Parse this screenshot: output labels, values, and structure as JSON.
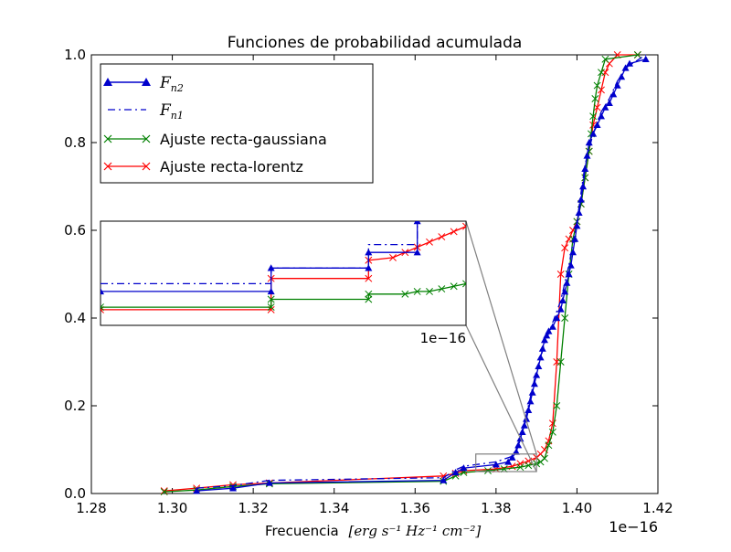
{
  "chart_data": {
    "type": "line",
    "title": "Funciones de probabilidad acumulada",
    "xlabel_text": "Frecuencia",
    "xlabel_math": "[erg s⁻¹ Hz⁻¹ cm⁻²]",
    "x_offset_label": "1e−16",
    "xlim": [
      1.28,
      1.42
    ],
    "ylim": [
      0.0,
      1.0
    ],
    "xticks": [
      "1.28",
      "1.30",
      "1.32",
      "1.34",
      "1.36",
      "1.38",
      "1.40",
      "1.42"
    ],
    "yticks": [
      "0.0",
      "0.2",
      "0.4",
      "0.6",
      "0.8",
      "1.0"
    ],
    "legend_position": "top-left",
    "series": [
      {
        "name": "F_n2",
        "label_main": "F",
        "label_sub": "n2",
        "color": "#0000cc",
        "style": "solid",
        "marker": "triangle",
        "points": [
          [
            1.306,
            0.006
          ],
          [
            1.315,
            0.012
          ],
          [
            1.324,
            0.024
          ],
          [
            1.367,
            0.03
          ],
          [
            1.37,
            0.048
          ],
          [
            1.372,
            0.058
          ],
          [
            1.38,
            0.066
          ],
          [
            1.383,
            0.072
          ],
          [
            1.384,
            0.082
          ],
          [
            1.385,
            0.095
          ],
          [
            1.3855,
            0.11
          ],
          [
            1.386,
            0.125
          ],
          [
            1.3865,
            0.14
          ],
          [
            1.387,
            0.155
          ],
          [
            1.3875,
            0.17
          ],
          [
            1.388,
            0.19
          ],
          [
            1.3885,
            0.21
          ],
          [
            1.389,
            0.23
          ],
          [
            1.3895,
            0.25
          ],
          [
            1.39,
            0.27
          ],
          [
            1.3905,
            0.29
          ],
          [
            1.391,
            0.31
          ],
          [
            1.3915,
            0.33
          ],
          [
            1.392,
            0.35
          ],
          [
            1.3925,
            0.36
          ],
          [
            1.393,
            0.37
          ],
          [
            1.394,
            0.38
          ],
          [
            1.395,
            0.4
          ],
          [
            1.396,
            0.42
          ],
          [
            1.3965,
            0.44
          ],
          [
            1.397,
            0.46
          ],
          [
            1.3975,
            0.48
          ],
          [
            1.398,
            0.5
          ],
          [
            1.3985,
            0.52
          ],
          [
            1.399,
            0.55
          ],
          [
            1.3995,
            0.58
          ],
          [
            1.4,
            0.61
          ],
          [
            1.4005,
            0.64
          ],
          [
            1.401,
            0.67
          ],
          [
            1.4015,
            0.7
          ],
          [
            1.402,
            0.74
          ],
          [
            1.4025,
            0.77
          ],
          [
            1.403,
            0.8
          ],
          [
            1.404,
            0.82
          ],
          [
            1.405,
            0.84
          ],
          [
            1.406,
            0.86
          ],
          [
            1.407,
            0.88
          ],
          [
            1.408,
            0.89
          ],
          [
            1.409,
            0.91
          ],
          [
            1.41,
            0.93
          ],
          [
            1.411,
            0.95
          ],
          [
            1.412,
            0.97
          ],
          [
            1.413,
            0.98
          ],
          [
            1.417,
            0.99
          ]
        ]
      },
      {
        "name": "F_n1",
        "label_main": "F",
        "label_sub": "n1",
        "color": "#0000cc",
        "style": "dashdot",
        "marker": "none",
        "points": [
          [
            1.306,
            0.012
          ],
          [
            1.315,
            0.018
          ],
          [
            1.324,
            0.03
          ],
          [
            1.367,
            0.036
          ],
          [
            1.37,
            0.054
          ],
          [
            1.372,
            0.062
          ],
          [
            1.38,
            0.072
          ],
          [
            1.384,
            0.085
          ],
          [
            1.386,
            0.12
          ],
          [
            1.388,
            0.2
          ],
          [
            1.39,
            0.28
          ],
          [
            1.392,
            0.34
          ],
          [
            1.394,
            0.39
          ],
          [
            1.396,
            0.44
          ],
          [
            1.398,
            0.52
          ],
          [
            1.4,
            0.62
          ],
          [
            1.402,
            0.75
          ],
          [
            1.404,
            0.82
          ],
          [
            1.406,
            0.87
          ],
          [
            1.408,
            0.9
          ],
          [
            1.41,
            0.94
          ],
          [
            1.412,
            0.97
          ],
          [
            1.417,
            1.0
          ]
        ]
      },
      {
        "name": "Ajuste recta-gaussiana",
        "label_main": "Ajuste recta-gaussiana",
        "label_sub": "",
        "color": "#008000",
        "style": "solid",
        "marker": "x",
        "points": [
          [
            1.298,
            0.004
          ],
          [
            1.306,
            0.008
          ],
          [
            1.315,
            0.016
          ],
          [
            1.324,
            0.022
          ],
          [
            1.367,
            0.028
          ],
          [
            1.37,
            0.04
          ],
          [
            1.372,
            0.048
          ],
          [
            1.378,
            0.052
          ],
          [
            1.382,
            0.056
          ],
          [
            1.386,
            0.06
          ],
          [
            1.388,
            0.064
          ],
          [
            1.39,
            0.068
          ],
          [
            1.391,
            0.072
          ],
          [
            1.392,
            0.08
          ],
          [
            1.393,
            0.11
          ],
          [
            1.394,
            0.14
          ],
          [
            1.395,
            0.2
          ],
          [
            1.396,
            0.3
          ],
          [
            1.397,
            0.4
          ],
          [
            1.398,
            0.5
          ],
          [
            1.399,
            0.58
          ],
          [
            1.4,
            0.62
          ],
          [
            1.401,
            0.66
          ],
          [
            1.402,
            0.72
          ],
          [
            1.403,
            0.78
          ],
          [
            1.4035,
            0.82
          ],
          [
            1.404,
            0.86
          ],
          [
            1.4045,
            0.9
          ],
          [
            1.405,
            0.93
          ],
          [
            1.406,
            0.96
          ],
          [
            1.407,
            0.99
          ],
          [
            1.415,
            1.0
          ]
        ]
      },
      {
        "name": "Ajuste recta-lorentz",
        "label_main": "Ajuste recta-lorentz",
        "label_sub": "",
        "color": "#ff0000",
        "style": "solid",
        "marker": "x",
        "points": [
          [
            1.298,
            0.006
          ],
          [
            1.306,
            0.012
          ],
          [
            1.315,
            0.02
          ],
          [
            1.324,
            0.024
          ],
          [
            1.367,
            0.04
          ],
          [
            1.37,
            0.046
          ],
          [
            1.372,
            0.052
          ],
          [
            1.38,
            0.056
          ],
          [
            1.384,
            0.062
          ],
          [
            1.386,
            0.068
          ],
          [
            1.388,
            0.074
          ],
          [
            1.39,
            0.082
          ],
          [
            1.391,
            0.09
          ],
          [
            1.392,
            0.1
          ],
          [
            1.393,
            0.12
          ],
          [
            1.394,
            0.16
          ],
          [
            1.395,
            0.3
          ],
          [
            1.396,
            0.5
          ],
          [
            1.397,
            0.56
          ],
          [
            1.398,
            0.58
          ],
          [
            1.399,
            0.6
          ],
          [
            1.4,
            0.62
          ],
          [
            1.401,
            0.66
          ],
          [
            1.402,
            0.72
          ],
          [
            1.403,
            0.78
          ],
          [
            1.404,
            0.84
          ],
          [
            1.405,
            0.88
          ],
          [
            1.406,
            0.92
          ],
          [
            1.407,
            0.96
          ],
          [
            1.408,
            0.98
          ],
          [
            1.41,
            1.0
          ],
          [
            1.415,
            1.0
          ]
        ]
      }
    ],
    "inset": {
      "xlim": [
        1.375,
        1.39
      ],
      "ylim": [
        0.05,
        0.09
      ],
      "offset_label": "1e−16",
      "series": [
        {
          "name": "F_n2",
          "color": "#0000cc",
          "style": "solid",
          "marker": "triangle",
          "points": [
            [
              1.375,
              0.063
            ],
            [
              1.382,
              0.063
            ],
            [
              1.382,
              0.072
            ],
            [
              1.386,
              0.072
            ],
            [
              1.386,
              0.078
            ],
            [
              1.388,
              0.078
            ],
            [
              1.388,
              0.09
            ]
          ]
        },
        {
          "name": "F_n1",
          "color": "#0000cc",
          "style": "dashdot",
          "marker": "none",
          "points": [
            [
              1.375,
              0.066
            ],
            [
              1.382,
              0.066
            ],
            [
              1.382,
              0.072
            ],
            [
              1.386,
              0.072
            ],
            [
              1.386,
              0.081
            ],
            [
              1.388,
              0.081
            ],
            [
              1.388,
              0.09
            ]
          ]
        },
        {
          "name": "Ajuste recta-gaussiana",
          "color": "#008000",
          "style": "solid",
          "marker": "x",
          "points": [
            [
              1.375,
              0.057
            ],
            [
              1.382,
              0.057
            ],
            [
              1.382,
              0.06
            ],
            [
              1.386,
              0.06
            ],
            [
              1.386,
              0.062
            ],
            [
              1.3875,
              0.062
            ],
            [
              1.388,
              0.063
            ],
            [
              1.3885,
              0.063
            ],
            [
              1.389,
              0.064
            ],
            [
              1.3895,
              0.065
            ],
            [
              1.39,
              0.066
            ]
          ]
        },
        {
          "name": "Ajuste recta-lorentz",
          "color": "#ff0000",
          "style": "solid",
          "marker": "x",
          "points": [
            [
              1.375,
              0.056
            ],
            [
              1.382,
              0.056
            ],
            [
              1.382,
              0.068
            ],
            [
              1.386,
              0.068
            ],
            [
              1.386,
              0.075
            ],
            [
              1.387,
              0.076
            ],
            [
              1.3875,
              0.078
            ],
            [
              1.388,
              0.08
            ],
            [
              1.3885,
              0.082
            ],
            [
              1.389,
              0.084
            ],
            [
              1.3895,
              0.086
            ],
            [
              1.39,
              0.088
            ]
          ]
        }
      ]
    }
  }
}
